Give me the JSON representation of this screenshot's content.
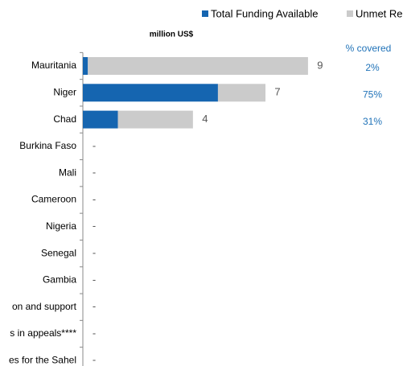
{
  "chart_data": {
    "type": "stacked_barh",
    "subtitle": "million US$",
    "coverage_title": "% covered",
    "categories": [
      "Mauritania",
      "Niger",
      "Chad",
      "Burkina Faso",
      "Mali",
      "Cameroon",
      "Nigeria",
      "Senegal",
      "Gambia",
      "on and support",
      "s in appeals****",
      "es for the Sahel"
    ],
    "series": [
      {
        "name": "Total Funding Available",
        "color": "#1565b0",
        "values": [
          0.2,
          5.4,
          1.4,
          null,
          null,
          null,
          null,
          null,
          null,
          null,
          null,
          null
        ]
      },
      {
        "name": "Unmet Requirements",
        "color": "#cbcbcb",
        "values": [
          8.8,
          1.9,
          3.0,
          null,
          null,
          null,
          null,
          null,
          null,
          null,
          null,
          null
        ]
      }
    ],
    "total_labels": [
      "9",
      "7",
      "4",
      "-",
      "-",
      "-",
      "-",
      "-",
      "-",
      "-",
      "-",
      "-"
    ],
    "coverage_labels": [
      "2%",
      "75%",
      "31%"
    ],
    "coverage_color": "#1f72b8",
    "xlim": [
      0,
      10
    ]
  }
}
